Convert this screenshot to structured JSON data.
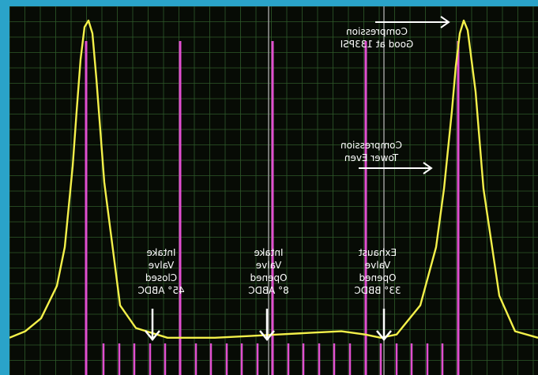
{
  "chart_data": {
    "type": "line",
    "title": "",
    "xlabel": "",
    "ylabel": "",
    "grid": true,
    "colors": {
      "background": "#070b05",
      "grid": "#2f5a2a",
      "trace": "#f3f04a",
      "markers": "#e14fd0",
      "cursor": "#9a9a9a",
      "annotation": "#ffffff"
    },
    "series": [
      {
        "x": [
          0,
          20,
          40,
          60,
          70,
          80,
          85,
          90,
          95,
          100,
          105,
          110,
          120,
          140,
          160,
          200,
          260,
          300,
          340,
          380,
          420,
          450,
          470,
          490,
          520,
          540,
          550,
          560,
          565,
          570,
          575,
          580,
          590,
          600,
          620,
          640,
          669
        ],
        "y": [
          0.02,
          0.04,
          0.08,
          0.18,
          0.3,
          0.55,
          0.72,
          0.88,
          0.98,
          1.0,
          0.96,
          0.82,
          0.5,
          0.12,
          0.05,
          0.02,
          0.02,
          0.025,
          0.03,
          0.035,
          0.04,
          0.03,
          0.02,
          0.03,
          0.12,
          0.3,
          0.48,
          0.72,
          0.86,
          0.96,
          1.0,
          0.97,
          0.78,
          0.48,
          0.15,
          0.04,
          0.02
        ]
      }
    ],
    "marker_lines": {
      "tall": [
        97,
        216,
        333,
        451,
        568
      ],
      "short": [
        119,
        139,
        158,
        178,
        197,
        216,
        236,
        255,
        275,
        294,
        314,
        333,
        353,
        372,
        392,
        411,
        431,
        451,
        470,
        490,
        509,
        529,
        548
      ]
    },
    "cursor_lines": [
      328,
      474
    ],
    "annotations": [
      {
        "id": "compression-good",
        "lines": [
          "Compression",
          "Good at 133PSI"
        ],
        "arrow": "right"
      },
      {
        "id": "compression-tower",
        "lines": [
          "Compression",
          "Tower Even"
        ],
        "arrow": "right"
      },
      {
        "id": "intake-closed",
        "lines": [
          "Intake",
          "Valve",
          "Closed",
          "45° ABDC"
        ],
        "arrow": "down"
      },
      {
        "id": "intake-opened",
        "lines": [
          "Intake",
          "Valve",
          "Opened",
          "8° ABDC"
        ],
        "arrow": "down"
      },
      {
        "id": "exhaust-opened",
        "lines": [
          "Exhaust",
          "Valve",
          "Opened",
          "33° BBDC"
        ],
        "arrow": "down"
      }
    ]
  }
}
